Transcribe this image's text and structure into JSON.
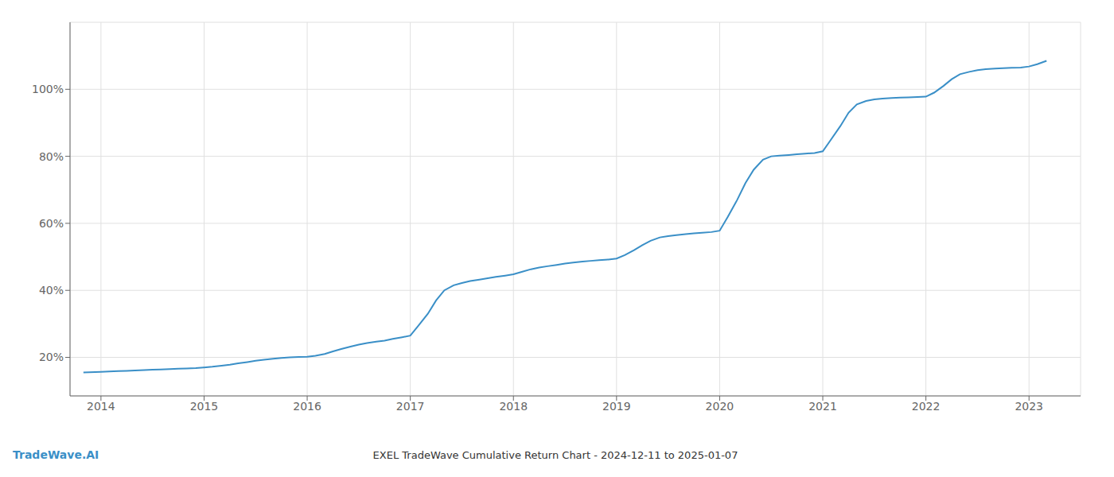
{
  "chart_data": {
    "type": "line",
    "title": "EXEL TradeWave Cumulative Return Chart - 2024-12-11 to 2025-01-07",
    "annotations": [
      "TradeWave.AI"
    ],
    "color": "#3a8fc7",
    "grid": true,
    "x": [
      2013.83,
      2014.0,
      2014.08,
      2014.17,
      2014.25,
      2014.33,
      2014.42,
      2014.5,
      2014.58,
      2014.67,
      2014.75,
      2014.83,
      2014.92,
      2015.0,
      2015.08,
      2015.17,
      2015.25,
      2015.33,
      2015.42,
      2015.5,
      2015.58,
      2015.67,
      2015.75,
      2015.83,
      2015.92,
      2016.0,
      2016.08,
      2016.17,
      2016.25,
      2016.33,
      2016.42,
      2016.5,
      2016.58,
      2016.67,
      2016.75,
      2016.83,
      2016.92,
      2017.0,
      2017.08,
      2017.17,
      2017.25,
      2017.33,
      2017.42,
      2017.5,
      2017.58,
      2017.67,
      2017.75,
      2017.83,
      2017.92,
      2018.0,
      2018.08,
      2018.17,
      2018.25,
      2018.33,
      2018.42,
      2018.5,
      2018.58,
      2018.67,
      2018.75,
      2018.83,
      2018.92,
      2019.0,
      2019.08,
      2019.17,
      2019.25,
      2019.33,
      2019.42,
      2019.5,
      2019.58,
      2019.67,
      2019.75,
      2019.83,
      2019.92,
      2020.0,
      2020.08,
      2020.17,
      2020.25,
      2020.33,
      2020.42,
      2020.5,
      2020.58,
      2020.67,
      2020.75,
      2020.83,
      2020.92,
      2021.0,
      2021.08,
      2021.17,
      2021.25,
      2021.33,
      2021.42,
      2021.5,
      2021.58,
      2021.67,
      2021.75,
      2021.83,
      2021.92,
      2022.0,
      2022.08,
      2022.17,
      2022.25,
      2022.33,
      2022.42,
      2022.5,
      2022.58,
      2022.67,
      2022.75,
      2022.83,
      2022.92,
      2023.0,
      2023.08,
      2023.17
    ],
    "values": [
      0.155,
      0.157,
      0.158,
      0.159,
      0.16,
      0.161,
      0.162,
      0.163,
      0.164,
      0.165,
      0.166,
      0.167,
      0.168,
      0.17,
      0.172,
      0.175,
      0.178,
      0.182,
      0.186,
      0.19,
      0.193,
      0.196,
      0.198,
      0.2,
      0.201,
      0.202,
      0.205,
      0.21,
      0.218,
      0.225,
      0.232,
      0.238,
      0.243,
      0.247,
      0.25,
      0.255,
      0.26,
      0.265,
      0.295,
      0.33,
      0.37,
      0.4,
      0.415,
      0.422,
      0.428,
      0.432,
      0.436,
      0.44,
      0.444,
      0.448,
      0.455,
      0.463,
      0.468,
      0.472,
      0.476,
      0.48,
      0.483,
      0.486,
      0.488,
      0.49,
      0.492,
      0.495,
      0.505,
      0.52,
      0.535,
      0.548,
      0.558,
      0.562,
      0.565,
      0.568,
      0.57,
      0.572,
      0.574,
      0.578,
      0.62,
      0.67,
      0.72,
      0.76,
      0.79,
      0.8,
      0.802,
      0.804,
      0.806,
      0.808,
      0.81,
      0.815,
      0.85,
      0.89,
      0.93,
      0.955,
      0.965,
      0.97,
      0.972,
      0.974,
      0.975,
      0.976,
      0.977,
      0.978,
      0.99,
      1.01,
      1.03,
      1.045,
      1.052,
      1.057,
      1.06,
      1.062,
      1.063,
      1.064,
      1.065,
      1.068,
      1.075,
      1.085
    ],
    "xlim": [
      2013.7,
      2023.5
    ],
    "xticks": [
      2014,
      2015,
      2016,
      2017,
      2018,
      2019,
      2020,
      2021,
      2022,
      2023
    ],
    "ylim": [
      0.085,
      1.2
    ],
    "yticks": [
      {
        "value": 0.2,
        "label": "20%"
      },
      {
        "value": 0.4,
        "label": "40%"
      },
      {
        "value": 0.6,
        "label": "60%"
      },
      {
        "value": 0.8,
        "label": "80%"
      },
      {
        "value": 1.0,
        "label": "100%"
      }
    ]
  }
}
